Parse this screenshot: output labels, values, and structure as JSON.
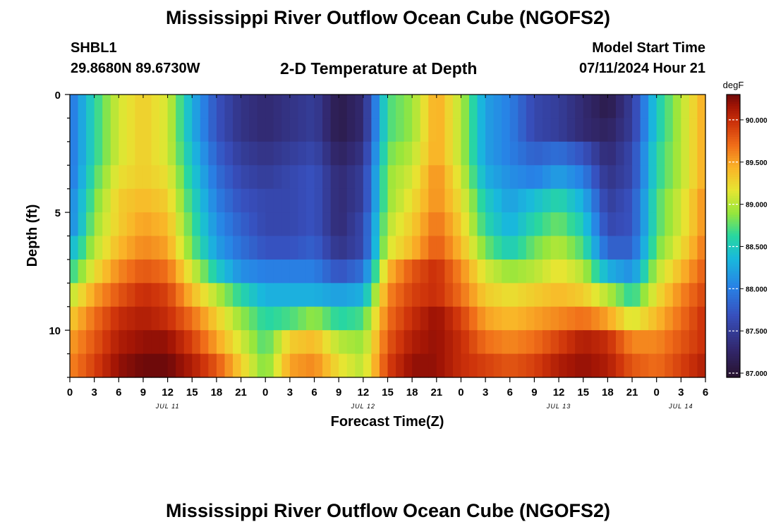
{
  "header": {
    "title": "Mississippi River Outflow Ocean Cube (NGOFS2)",
    "station": "SHBL1",
    "coords": "29.8680N  89.6730W",
    "subtitle": "2-D Temperature at Depth",
    "model_start_label": "Model Start Time",
    "model_start_value": "07/11/2024 Hour 21"
  },
  "footer": {
    "title": "Mississippi River Outflow Ocean Cube (NGOFS2)"
  },
  "chart_data": {
    "type": "heatmap",
    "xlabel": "Forecast Time(Z)",
    "ylabel": "Depth (ft)",
    "x_hours_range": [
      0,
      78
    ],
    "x_tick_labels": [
      "0",
      "3",
      "6",
      "9",
      "12",
      "15",
      "18",
      "21",
      "0",
      "3",
      "6",
      "9",
      "12",
      "15",
      "18",
      "21",
      "0",
      "3",
      "6",
      "9",
      "12",
      "15",
      "18",
      "21",
      "0",
      "3",
      "6"
    ],
    "date_labels": [
      {
        "label": "JUL 11",
        "hour": 12
      },
      {
        "label": "JUL 12",
        "hour": 36
      },
      {
        "label": "JUL 13",
        "hour": 60
      },
      {
        "label": "JUL 14",
        "hour": 75
      }
    ],
    "y_range_ft": [
      0,
      12
    ],
    "y_tick_labels": [
      "0",
      "5",
      "10"
    ],
    "y_tick_values": [
      0,
      5,
      10
    ],
    "depth_bins_ft": [
      0.5,
      1.5,
      2.5,
      3.5,
      4.5,
      5.5,
      6.5,
      7.5,
      8.5,
      9.5,
      10.5,
      11.5
    ],
    "colorbar": {
      "unit": "degF",
      "min": 86.95,
      "max": 90.3,
      "tick_values": [
        87.0,
        87.5,
        88.0,
        88.5,
        89.0,
        89.5,
        90.0
      ],
      "tick_labels": [
        "87.000",
        "87.500",
        "88.000",
        "88.500",
        "89.000",
        "89.500",
        "90.000"
      ]
    },
    "key_hours": [
      0,
      3,
      6,
      9,
      12,
      15,
      18,
      21,
      24,
      27,
      30,
      33,
      36,
      39,
      42,
      45,
      48,
      51,
      54,
      57,
      60,
      63,
      66,
      69,
      72,
      75,
      78
    ],
    "rows_degF": [
      [
        87.9,
        88.6,
        89.1,
        89.3,
        89.1,
        88.3,
        87.7,
        87.4,
        87.3,
        87.4,
        87.5,
        87.1,
        87.3,
        88.7,
        88.9,
        89.5,
        89.0,
        88.2,
        88.0,
        87.6,
        87.5,
        87.3,
        87.1,
        87.5,
        88.5,
        89.0,
        89.5
      ],
      [
        87.9,
        88.6,
        89.1,
        89.3,
        89.1,
        88.3,
        87.7,
        87.4,
        87.3,
        87.4,
        87.5,
        87.1,
        87.3,
        88.7,
        88.9,
        89.5,
        89.0,
        88.2,
        88.0,
        87.6,
        87.5,
        87.3,
        87.2,
        87.5,
        88.5,
        89.0,
        89.5
      ],
      [
        87.9,
        88.6,
        89.1,
        89.3,
        89.1,
        88.4,
        87.8,
        87.5,
        87.4,
        87.5,
        87.6,
        87.2,
        87.4,
        88.8,
        89.0,
        89.5,
        89.0,
        88.2,
        88.0,
        87.8,
        87.9,
        87.7,
        87.3,
        87.6,
        88.6,
        89.0,
        89.5
      ],
      [
        87.9,
        88.7,
        89.2,
        89.3,
        89.2,
        88.5,
        87.9,
        87.6,
        87.5,
        87.6,
        87.7,
        87.3,
        87.5,
        88.9,
        89.1,
        89.6,
        89.1,
        88.3,
        88.1,
        88.0,
        88.2,
        88.0,
        87.4,
        87.6,
        88.6,
        89.0,
        89.5
      ],
      [
        88.0,
        88.8,
        89.3,
        89.4,
        89.3,
        88.6,
        88.0,
        87.7,
        87.6,
        87.6,
        87.7,
        87.3,
        87.5,
        88.9,
        89.2,
        89.6,
        89.2,
        88.5,
        88.2,
        88.4,
        88.6,
        88.3,
        87.5,
        87.7,
        88.7,
        89.1,
        89.6
      ],
      [
        88.0,
        88.9,
        89.3,
        89.5,
        89.4,
        88.7,
        88.1,
        87.8,
        87.6,
        87.6,
        87.7,
        87.3,
        87.6,
        89.0,
        89.3,
        89.7,
        89.3,
        88.6,
        88.3,
        88.6,
        88.8,
        88.5,
        87.6,
        87.7,
        88.7,
        89.1,
        89.6
      ],
      [
        88.3,
        89.0,
        89.4,
        89.6,
        89.5,
        88.8,
        88.2,
        87.9,
        87.7,
        87.7,
        87.8,
        87.4,
        87.6,
        89.1,
        89.4,
        89.8,
        89.4,
        88.8,
        88.5,
        88.8,
        89.0,
        88.7,
        87.8,
        87.8,
        88.8,
        89.2,
        89.7
      ],
      [
        88.6,
        89.2,
        89.6,
        89.8,
        89.7,
        89.1,
        88.5,
        88.1,
        88.0,
        88.0,
        88.0,
        87.7,
        87.9,
        89.4,
        89.8,
        90.0,
        89.6,
        89.1,
        88.9,
        89.0,
        89.2,
        89.0,
        88.3,
        88.1,
        89.0,
        89.4,
        89.8
      ],
      [
        89.0,
        89.5,
        89.8,
        90.0,
        89.9,
        89.4,
        89.0,
        88.6,
        88.3,
        88.3,
        88.3,
        88.2,
        88.3,
        89.6,
        89.9,
        90.0,
        89.7,
        89.3,
        89.2,
        89.3,
        89.4,
        89.3,
        89.0,
        88.6,
        89.2,
        89.6,
        89.9
      ],
      [
        89.3,
        89.7,
        90.0,
        90.1,
        90.0,
        89.7,
        89.3,
        88.9,
        88.6,
        88.7,
        88.9,
        88.6,
        88.7,
        89.7,
        90.0,
        90.2,
        89.9,
        89.5,
        89.4,
        89.5,
        89.6,
        89.7,
        89.5,
        89.1,
        89.4,
        89.7,
        90.0
      ],
      [
        89.5,
        89.8,
        90.1,
        90.2,
        90.2,
        89.9,
        89.5,
        89.1,
        88.7,
        89.3,
        89.4,
        89.0,
        88.9,
        89.8,
        90.1,
        90.2,
        90.0,
        89.7,
        89.6,
        89.7,
        89.9,
        90.1,
        90.0,
        89.6,
        89.6,
        89.8,
        90.0
      ],
      [
        89.6,
        89.9,
        90.2,
        90.3,
        90.3,
        90.1,
        89.8,
        89.3,
        88.8,
        89.5,
        89.6,
        89.2,
        89.0,
        89.9,
        90.2,
        90.2,
        90.0,
        89.9,
        89.8,
        89.9,
        90.1,
        90.2,
        90.1,
        89.8,
        89.7,
        89.9,
        90.1
      ]
    ]
  }
}
